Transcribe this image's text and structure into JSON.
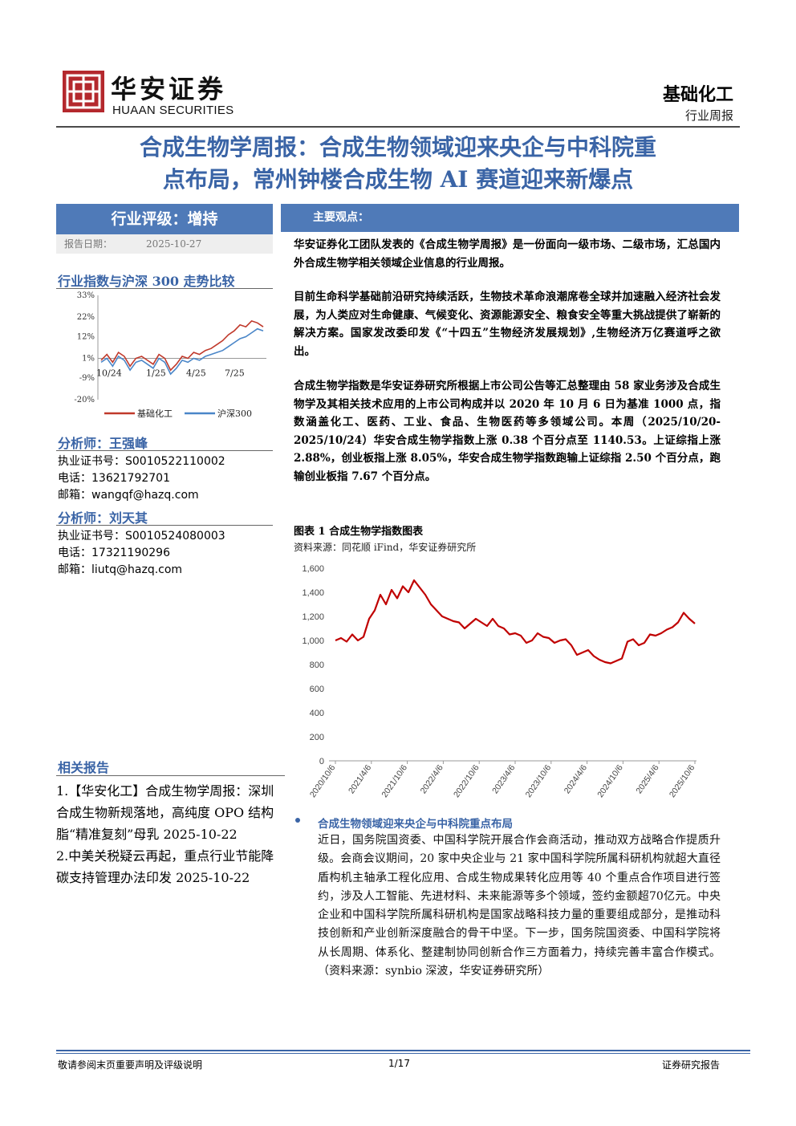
{
  "header": {
    "logo_cn": "华安证券",
    "logo_en": "HUAAN SECURITIES",
    "industry": "基础化工",
    "report_type": "行业周报"
  },
  "title": {
    "line1": "合成生物学周报：合成生物领域迎来央企与中科院重",
    "line2": "点布局，常州钟楼合成生物 AI 赛道迎来新爆点"
  },
  "left": {
    "rating": "行业评级：增持",
    "date_label": "报告日期：",
    "date_value": "2025-10-27",
    "index_heading": "行业指数与沪深 300 走势比较",
    "analysts": [
      {
        "heading": "分析师：王强峰",
        "cert_label": "执业证书号：",
        "cert": "S0010522110002",
        "phone_label": "电话：",
        "phone": "13621792701",
        "email_label": "邮箱：",
        "email": "wangqf@hazq.com"
      },
      {
        "heading": "分析师：刘天其",
        "cert_label": "执业证书号：",
        "cert": "S0010524080003",
        "phone_label": "电话：",
        "phone": "17321190296",
        "email_label": "邮箱：",
        "email": "liutq@hazq.com"
      }
    ],
    "related_heading": "相关报告",
    "related": [
      "1.【华安化工】合成生物学周报：深圳合成生物新规落地，高纯度 OPO 结构脂“精准复刻”母乳 2025-10-22",
      "2.中美关税疑云再起，重点行业节能降碳支持管理办法印发 2025-10-22"
    ]
  },
  "right": {
    "views_heading": "主要观点：",
    "paras": [
      "华安证券化工团队发表的《合成生物学周报》是一份面向一级市场、二级市场，汇总国内外合成生物学相关领域企业信息的行业周报。",
      "目前生命科学基础前沿研究持续活跃，生物技术革命浪潮席卷全球并加速融入经济社会发展，为人类应对生命健康、气候变化、资源能源安全、粮食安全等重大挑战提供了崭新的解决方案。国家发改委印发《“十四五”生物经济发展规划》,生物经济万亿赛道呼之欲出。",
      "合成生物学指数是华安证券研究所根据上市公司公告等汇总整理由 58 家业务涉及合成生物学及其相关技术应用的上市公司构成并以 2020 年 10 月 6 日为基准 1000 点，指数涵盖化工、医药、工业、食品、生物医药等多领域公司。本周（2025/10/20-2025/10/24）华安合成生物学指数上涨 0.38 个百分点至 1140.53。上证综指上涨 2.88%，创业板指上涨 8.05%，华安合成生物学指数跑输上证综指 2.50 个百分点，跑输创业板指 7.67 个百分点。"
    ],
    "figure_title": "图表 1 合成生物学指数图表",
    "figure_source": "资料来源：同花顺 iFind，华安证券研究所",
    "bullet_title": "合成生物领域迎来央企与中科院重点布局",
    "bullet_body": "近日，国务院国资委、中国科学院开展合作会商活动，推动双方战略合作提质升级。会商会议期间，20 家中央企业与 21 家中国科学院所属科研机构就超大直径盾构机主轴承工程化应用、合成生物成果转化应用等 40 个重点合作项目进行签约，涉及人工智能、先进材料、未来能源等多个领域，签约金额超70亿元。中央企业和中国科学院所属科研机构是国家战略科技力量的重要组成部分，是推动科技创新和产业创新深度融合的骨干中坚。下一步，国务院国资委、中国科学院将从长周期、体系化、整建制协同创新合作三方面着力，持续完善丰富合作模式。（资料来源：synbio 深波，华安证券研究所）"
  },
  "chart_data": [
    {
      "type": "line",
      "x_ticks": [
        "10/24",
        "1/25",
        "4/25",
        "7/25"
      ],
      "y_ticks": [
        "33%",
        "22%",
        "12%",
        "1%",
        "-9%",
        "-20%"
      ],
      "ylim": [
        -20,
        33
      ],
      "series": [
        {
          "name": "基础化工",
          "color": "#c0392b",
          "values": [
            0,
            3,
            -1,
            4,
            2,
            -3,
            1,
            2,
            0,
            -2,
            3,
            1,
            -5,
            -2,
            2,
            1,
            4,
            3,
            5,
            6,
            8,
            10,
            13,
            15,
            18,
            17,
            20,
            19,
            17
          ]
        },
        {
          "name": "沪深300",
          "color": "#4a86c8",
          "values": [
            -1,
            1,
            -3,
            2,
            0,
            -5,
            -1,
            0,
            -2,
            -4,
            1,
            -1,
            -7,
            -4,
            0,
            -1,
            1,
            0,
            2,
            3,
            4,
            5,
            7,
            9,
            11,
            12,
            14,
            16,
            15
          ]
        }
      ]
    },
    {
      "type": "line",
      "x_ticks": [
        "2020/10/6",
        "2021/4/6",
        "2021/10/6",
        "2022/4/6",
        "2022/10/6",
        "2023/4/6",
        "2023/10/6",
        "2024/4/6",
        "2024/10/6",
        "2025/4/6",
        "2025/10/6"
      ],
      "y_ticks": [
        "0",
        "200",
        "400",
        "600",
        "800",
        "1,000",
        "1,200",
        "1,400",
        "1,600"
      ],
      "ylim": [
        0,
        1600
      ],
      "series": [
        {
          "name": "合成生物学指数",
          "color": "#c00000",
          "values": [
            1000,
            1020,
            990,
            1050,
            1000,
            1030,
            1180,
            1250,
            1380,
            1300,
            1420,
            1350,
            1450,
            1400,
            1500,
            1440,
            1380,
            1300,
            1250,
            1200,
            1180,
            1160,
            1150,
            1100,
            1140,
            1180,
            1150,
            1120,
            1180,
            1120,
            1100,
            1050,
            1060,
            1040,
            980,
            1000,
            1060,
            1030,
            1020,
            980,
            1000,
            1010,
            960,
            880,
            900,
            920,
            870,
            840,
            820,
            810,
            830,
            850,
            990,
            1010,
            960,
            980,
            1050,
            1040,
            1060,
            1090,
            1110,
            1150,
            1230,
            1180,
            1140
          ]
        }
      ]
    }
  ]
}
